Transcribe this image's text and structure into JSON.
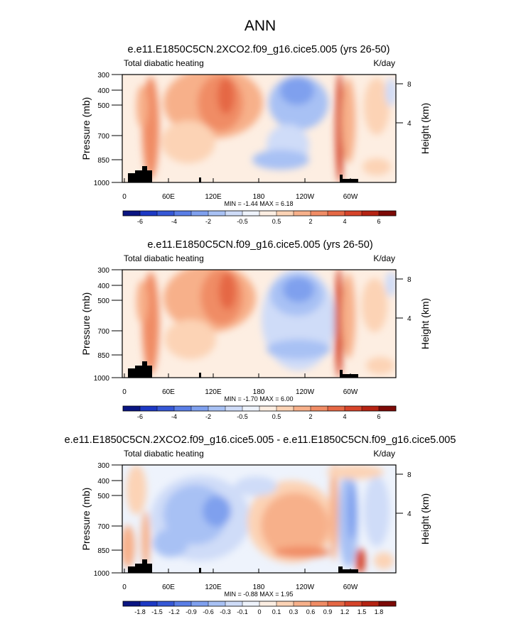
{
  "figure_title": "ANN",
  "chart_data": [
    {
      "type": "heatmap",
      "title": "e.e11.E1850C5CN.2XCO2.f09_g16.cice5.005 (yrs 26-50)",
      "left_label": "Total diabatic heating",
      "right_label": "K/day",
      "ylabel": "Pressure (mb)",
      "ylabel_right": "Height (km)",
      "x_ticks": [
        "0",
        "60E",
        "120E",
        "180",
        "120W",
        "60W"
      ],
      "y_ticks": [
        "300",
        "400",
        "500",
        "700",
        "850",
        "1000"
      ],
      "y2_ticks": [
        "8",
        "4"
      ],
      "min_max": "MIN = -1.44  MAX =  6.18",
      "colorbar_labels": [
        "-6",
        "-4",
        "-2",
        "-0.5",
        "0.5",
        "2",
        "4",
        "6"
      ],
      "colorbar_colors": [
        "#0a1582",
        "#1d39c4",
        "#3658d6",
        "#5a7ee6",
        "#7fa0ee",
        "#a8c1f4",
        "#cfdcf8",
        "#eef3fc",
        "#fdeee2",
        "#fcd3b5",
        "#f7b08a",
        "#f08c65",
        "#e56845",
        "#d6442a",
        "#b52313",
        "#7d0a07"
      ]
    },
    {
      "type": "heatmap",
      "title": "e.e11.E1850C5CN.f09_g16.cice5.005 (yrs 26-50)",
      "left_label": "Total diabatic heating",
      "right_label": "K/day",
      "ylabel": "Pressure (mb)",
      "ylabel_right": "Height (km)",
      "x_ticks": [
        "0",
        "60E",
        "120E",
        "180",
        "120W",
        "60W"
      ],
      "y_ticks": [
        "300",
        "400",
        "500",
        "700",
        "850",
        "1000"
      ],
      "y2_ticks": [
        "8",
        "4"
      ],
      "min_max": "MIN = -1.70  MAX =  6.00",
      "colorbar_labels": [
        "-6",
        "-4",
        "-2",
        "-0.5",
        "0.5",
        "2",
        "4",
        "6"
      ],
      "colorbar_colors": [
        "#0a1582",
        "#1d39c4",
        "#3658d6",
        "#5a7ee6",
        "#7fa0ee",
        "#a8c1f4",
        "#cfdcf8",
        "#eef3fc",
        "#fdeee2",
        "#fcd3b5",
        "#f7b08a",
        "#f08c65",
        "#e56845",
        "#d6442a",
        "#b52313",
        "#7d0a07"
      ]
    },
    {
      "type": "heatmap",
      "title": "e.e11.E1850C5CN.2XCO2.f09_g16.cice5.005 - e.e11.E1850C5CN.f09_g16.cice5.005",
      "left_label": "Total diabatic heating",
      "right_label": "K/day",
      "ylabel": "Pressure (mb)",
      "ylabel_right": "Height (km)",
      "x_ticks": [
        "0",
        "60E",
        "120E",
        "180",
        "120W",
        "60W"
      ],
      "y_ticks": [
        "300",
        "400",
        "500",
        "700",
        "850",
        "1000"
      ],
      "y2_ticks": [
        "8",
        "4"
      ],
      "min_max": "MIN = -0.88  MAX =  1.95",
      "colorbar_labels": [
        "-1.8",
        "-1.5",
        "-1.2",
        "-0.9",
        "-0.6",
        "-0.3",
        "-0.1",
        "0",
        "0.1",
        "0.3",
        "0.6",
        "0.9",
        "1.2",
        "1.5",
        "1.8"
      ],
      "colorbar_colors": [
        "#0a1582",
        "#1d39c4",
        "#3658d6",
        "#5a7ee6",
        "#7fa0ee",
        "#a8c1f4",
        "#cfdcf8",
        "#eef3fc",
        "#fdeee2",
        "#fcd3b5",
        "#f7b08a",
        "#f08c65",
        "#e56845",
        "#d6442a",
        "#b52313",
        "#7d0a07"
      ]
    }
  ]
}
